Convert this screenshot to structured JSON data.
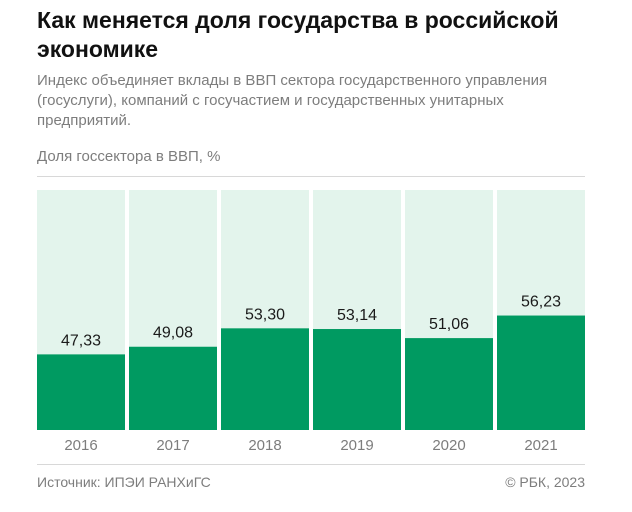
{
  "header": {
    "title": "Как меняется доля государства в российской экономике",
    "subtitle": "Индекс объединяет вклады в ВВП сектора государственного управления (госуслуги), компаний с госучастием и государственных унитарных предприятий."
  },
  "footer": {
    "source": "Источник: ИПЭИ РАНХиГС",
    "copyright": "© РБК, 2023"
  },
  "colors": {
    "bar": "#009a61",
    "track": "#e3f4ec",
    "text": "#1a1a1a",
    "muted": "#7d7d7d"
  },
  "chart_data": {
    "type": "bar",
    "title": "Как меняется доля государства в российской экономике",
    "ylabel": "Доля госсектора в ВВП, %",
    "xlabel": "",
    "categories": [
      "2016",
      "2017",
      "2018",
      "2019",
      "2020",
      "2021"
    ],
    "values": [
      47.33,
      49.08,
      53.3,
      53.14,
      51.06,
      56.23
    ],
    "value_labels": [
      "47,33",
      "49,08",
      "53,30",
      "53,14",
      "51,06",
      "56,23"
    ],
    "ylim": [
      30,
      85
    ],
    "grid": false,
    "legend": "none"
  }
}
